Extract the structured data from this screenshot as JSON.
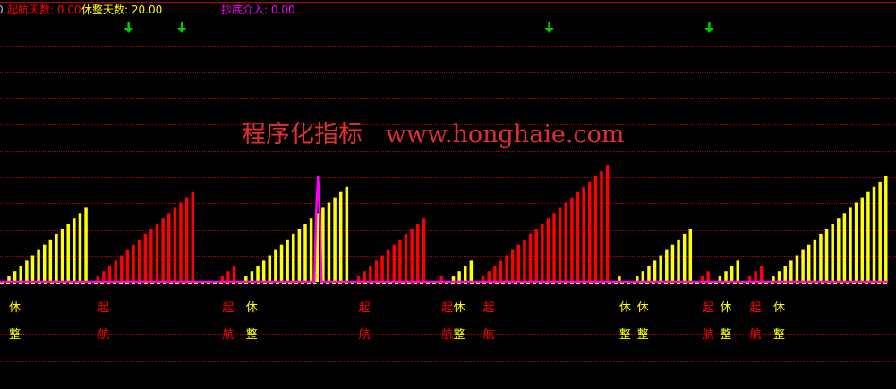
{
  "legend": {
    "prefix": "0",
    "qihang_label": "起航天数",
    "qihang_value": "0.00",
    "xiuzheng_label": "休整天数",
    "xiuzheng_value": "20.00",
    "chaodi_label": "抄底介入",
    "chaodi_value": "0.00"
  },
  "watermark": "程序化指标   www.honghaie.com",
  "colors": {
    "qihang": "#ff0000",
    "xiuzheng": "#ffff00",
    "chaodi": "#ff00ff",
    "arrow": "#00cc00",
    "grid": "#b00000"
  },
  "segments": [
    {
      "type": "xiuzheng",
      "start": 0,
      "length": 14
    },
    {
      "type": "qihang",
      "start": 15,
      "length": 17
    },
    {
      "type": "qihang",
      "start": 36,
      "length": 3
    },
    {
      "type": "xiuzheng",
      "start": 40,
      "length": 18
    },
    {
      "type": "qihang",
      "start": 59,
      "length": 12
    },
    {
      "type": "qihang",
      "start": 73,
      "length": 1
    },
    {
      "type": "xiuzheng",
      "start": 75,
      "length": 4
    },
    {
      "type": "qihang",
      "start": 80,
      "length": 22
    },
    {
      "type": "xiuzheng",
      "start": 103,
      "length": 1
    },
    {
      "type": "xiuzheng",
      "start": 106,
      "length": 10
    },
    {
      "type": "qihang",
      "start": 117,
      "length": 2
    },
    {
      "type": "xiuzheng",
      "start": 120,
      "length": 4
    },
    {
      "type": "qihang",
      "start": 125,
      "length": 3
    },
    {
      "type": "xiuzheng",
      "start": 129,
      "length": 20
    }
  ],
  "labels": {
    "qihang": [
      "起",
      "航"
    ],
    "xiuzheng": [
      "休",
      "整"
    ]
  },
  "arrow_bars": [
    20,
    29,
    91,
    118
  ],
  "chaodi_spike": {
    "bar": 52,
    "value": 20
  }
}
